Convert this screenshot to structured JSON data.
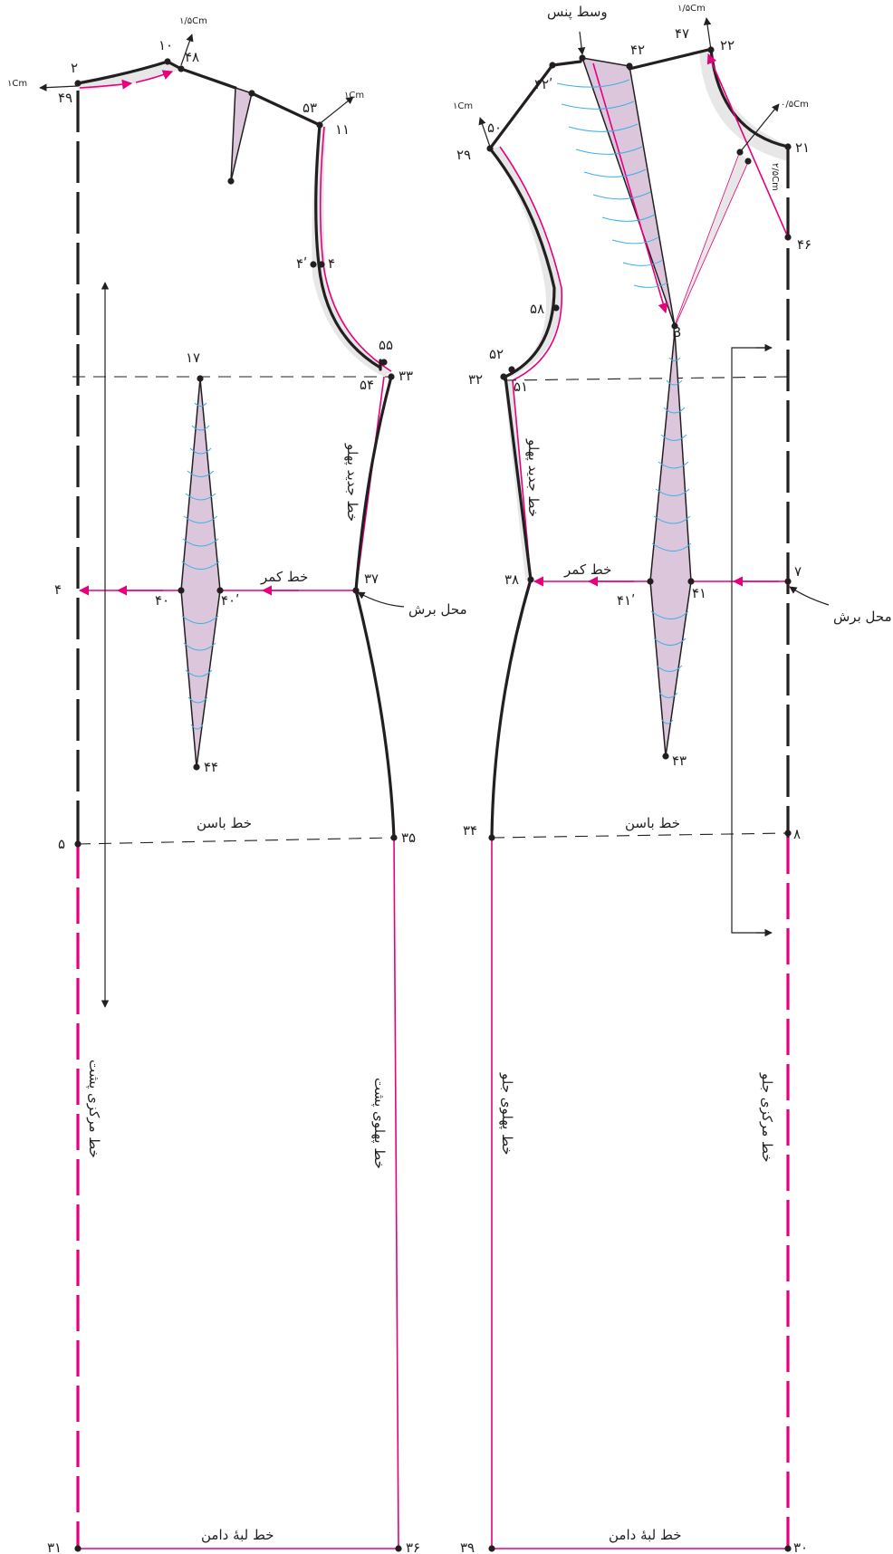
{
  "points": {
    "p2": "۲",
    "p49": "۴۹",
    "p10": "۱۰",
    "p48": "۴۸",
    "p53": "۵۳",
    "p11": "۱۱",
    "p4prime": "۴ʹ",
    "p4": "۴",
    "p55": "۵۵",
    "p54": "۵۴",
    "p33": "۳۳",
    "p17": "۱۷",
    "p40": "۴۰",
    "p40prime": "۴۰ʹ",
    "p44": "۴۴",
    "p37": "۳۷",
    "p4left": "۴",
    "p5": "۵",
    "p35": "۳۵",
    "p31": "۳۱",
    "p36": "۳۶",
    "p42prime": "۴۲ʹ",
    "p42": "۴۲",
    "p47": "۴۷",
    "p22": "۲۲",
    "p50": "۵۰",
    "p29": "۲۹",
    "p21": "۲۱",
    "p46": "۴۶",
    "p58": "۵۸",
    "pB": "B",
    "p52": "۵۲",
    "p32": "۳۲",
    "p51": "۵۱",
    "p38": "۳۸",
    "p41prime": "۴۱ʹ",
    "p41": "۴۱",
    "p7": "۷",
    "p43": "۴۳",
    "p34": "۳۴",
    "p8": "۸",
    "p39": "۳۹",
    "p30": "۳۰"
  },
  "measures": {
    "back_1cm_left": "۱Cm",
    "back_1_5cm": "۱/۵Cm",
    "back_1cm_right": "۱Cm",
    "front_1_5cm": "۱/۵Cm",
    "front_1cm": "۱Cm",
    "front_0_5cm": "۰/۵Cm",
    "front_2_5cm": "۲/۵Cm"
  },
  "labels": {
    "back_waist_line": "خط کمر",
    "back_cut_place": "محل برش",
    "back_new_side_line": "خط جدید پهلو",
    "back_hip_line": "خط باسن",
    "back_center_line": "خط مرکزی پشت",
    "back_side_line": "خط پهلوی پشت",
    "back_hem_line": "خط لبهٔ دامن",
    "front_dart_middle": "وسط پنس",
    "front_new_side_line": "خط جدید پهلو",
    "front_waist_line": "خط کمر",
    "front_cut_place": "محل برش",
    "front_hip_line": "خط باسن",
    "front_side_line": "خط پهلوی جلو",
    "front_center_line": "خط مرکزی جلو",
    "front_hem_line": "خط لبهٔ دامن"
  },
  "colors": {
    "outline": "#231f20",
    "accent_magenta": "#e6007e",
    "dart_fill": "#dcc6dc",
    "shade_gray": "#e7e7e8",
    "guide_blue": "#3fb0e6"
  }
}
